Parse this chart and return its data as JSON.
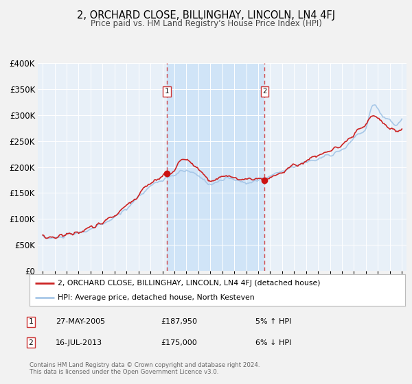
{
  "title": "2, ORCHARD CLOSE, BILLINGHAY, LINCOLN, LN4 4FJ",
  "subtitle": "Price paid vs. HM Land Registry's House Price Index (HPI)",
  "background_color": "#f2f2f2",
  "plot_bg_color": "#e8f0f8",
  "highlight_bg_color": "#d0e4f7",
  "legend_label_red": "2, ORCHARD CLOSE, BILLINGHAY, LINCOLN, LN4 4FJ (detached house)",
  "legend_label_blue": "HPI: Average price, detached house, North Kesteven",
  "transaction1_date": "27-MAY-2005",
  "transaction1_price": "£187,950",
  "transaction1_hpi": "5% ↑ HPI",
  "transaction1_year": 2005.38,
  "transaction2_date": "16-JUL-2013",
  "transaction2_price": "£175,000",
  "transaction2_hpi": "6% ↓ HPI",
  "transaction2_year": 2013.54,
  "ylim": [
    0,
    400000
  ],
  "xlim": [
    1994.6,
    2025.4
  ],
  "yticks": [
    0,
    50000,
    100000,
    150000,
    200000,
    250000,
    300000,
    350000,
    400000
  ],
  "footer": "Contains HM Land Registry data © Crown copyright and database right 2024.\nThis data is licensed under the Open Government Licence v3.0."
}
